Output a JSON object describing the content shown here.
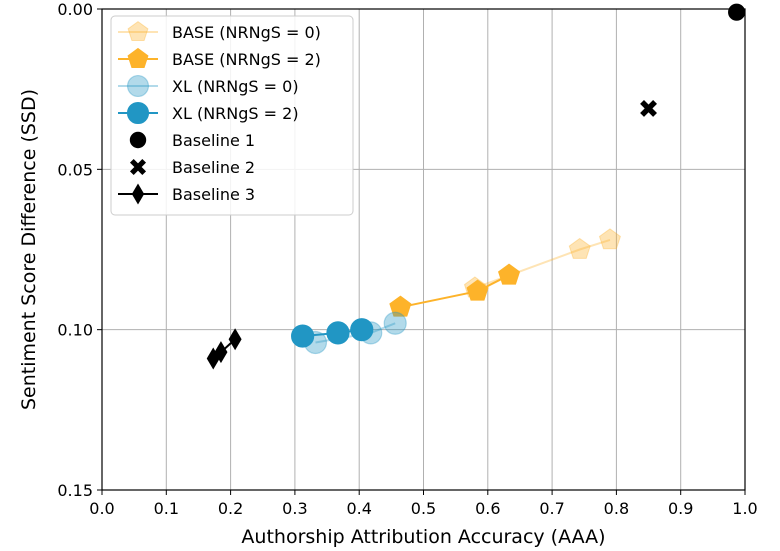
{
  "chart_data": {
    "type": "scatter",
    "title": "",
    "xlabel": "Authorship Attribution Accuracy (AAA)",
    "ylabel": "Sentiment Score Difference (SSD)",
    "xlim": [
      0.0,
      1.0
    ],
    "ylim": [
      0.0,
      0.15
    ],
    "y_inverted": true,
    "grid": true,
    "legend_position": "top-left",
    "x_ticks": [
      "0.0",
      "0.1",
      "0.2",
      "0.3",
      "0.4",
      "0.5",
      "0.6",
      "0.7",
      "0.8",
      "0.9",
      "1.0"
    ],
    "y_ticks": [
      "0.00",
      "0.05",
      "0.10",
      "0.15"
    ],
    "series": [
      {
        "name": "BASE (NRNgS = 0)",
        "marker": "pentagon",
        "color": "#fdb32a",
        "alpha": 0.35,
        "line": true,
        "points": [
          [
            0.79,
            0.072
          ],
          [
            0.743,
            0.075
          ],
          [
            0.58,
            0.087
          ]
        ]
      },
      {
        "name": "BASE (NRNgS = 2)",
        "marker": "pentagon",
        "color": "#fdb32a",
        "alpha": 1.0,
        "line": true,
        "points": [
          [
            0.633,
            0.083
          ],
          [
            0.584,
            0.088
          ],
          [
            0.464,
            0.093
          ]
        ]
      },
      {
        "name": "XL (NRNgS = 0)",
        "marker": "circle",
        "color": "#2196c4",
        "alpha": 0.35,
        "line": true,
        "points": [
          [
            0.456,
            0.098
          ],
          [
            0.418,
            0.101
          ],
          [
            0.332,
            0.104
          ]
        ]
      },
      {
        "name": "XL (NRNgS = 2)",
        "marker": "circle",
        "color": "#2196c4",
        "alpha": 1.0,
        "line": true,
        "points": [
          [
            0.404,
            0.1
          ],
          [
            0.367,
            0.101
          ],
          [
            0.312,
            0.102
          ]
        ]
      },
      {
        "name": "Baseline 1",
        "marker": "circle",
        "color": "#000000",
        "alpha": 1.0,
        "line": false,
        "points": [
          [
            0.987,
            0.001
          ]
        ]
      },
      {
        "name": "Baseline 2",
        "marker": "x",
        "color": "#000000",
        "alpha": 1.0,
        "line": false,
        "points": [
          [
            0.85,
            0.031
          ]
        ]
      },
      {
        "name": "Baseline 3",
        "marker": "diamond",
        "color": "#000000",
        "alpha": 1.0,
        "line": true,
        "points": [
          [
            0.207,
            0.103
          ],
          [
            0.185,
            0.107
          ],
          [
            0.173,
            0.109
          ]
        ]
      }
    ]
  }
}
